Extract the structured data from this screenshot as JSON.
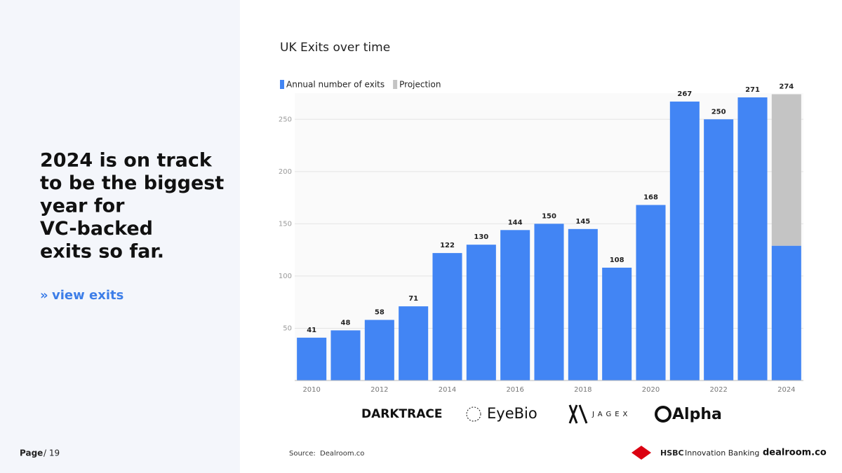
{
  "slide": {
    "headline": [
      "2024 is on track",
      "to be the biggest",
      "year for",
      "VC-backed",
      "exits so far."
    ],
    "link": "view exits",
    "link_marker": "»",
    "page_label": "Page",
    "page_total": "/ 19",
    "source_label": "Source:",
    "source": "Dealroom.co",
    "logos": [
      "DARKTRACE",
      "EyeBio",
      "JAGEX",
      "Alpha"
    ],
    "footer_logos": [
      "HSBC",
      "Innovation Banking",
      "dealroom.co"
    ]
  },
  "chart_data": {
    "type": "bar",
    "stacked": true,
    "title": "UK Exits over time",
    "categories": [
      "2010",
      null,
      "2012",
      null,
      "2014",
      null,
      "2016",
      null,
      "2018",
      null,
      "2020",
      null,
      "2022",
      null,
      "2024"
    ],
    "series": [
      {
        "name": "Annual number of exits",
        "color": "#4285f4",
        "values": [
          41,
          48,
          58,
          71,
          122,
          130,
          144,
          150,
          145,
          108,
          168,
          267,
          250,
          271,
          129
        ]
      },
      {
        "name": "Projection",
        "color": "#c4c4c4",
        "values": [
          null,
          null,
          null,
          null,
          null,
          null,
          null,
          null,
          null,
          null,
          null,
          null,
          null,
          null,
          145
        ]
      }
    ],
    "totals": [
      41,
      48,
      58,
      71,
      122,
      130,
      144,
      150,
      145,
      108,
      168,
      267,
      250,
      271,
      274
    ],
    "ylim": [
      0,
      275
    ],
    "yticks": [
      50,
      100,
      150,
      200,
      250
    ],
    "grid": true,
    "legend": "top-left"
  }
}
